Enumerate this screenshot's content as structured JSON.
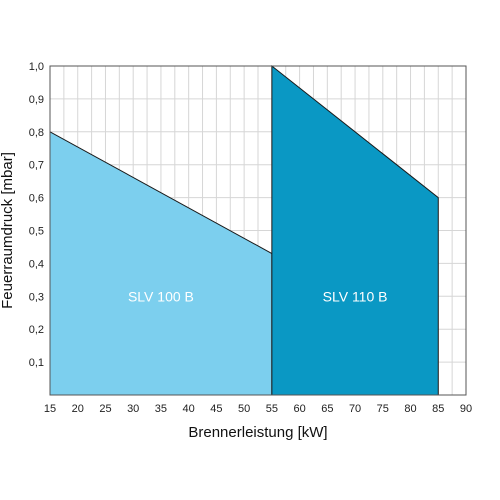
{
  "chart_data": {
    "type": "area",
    "xlabel": "Brennerleistung [kW]",
    "ylabel": "Feuerraumdruck [mbar]",
    "xlim": [
      15,
      90
    ],
    "ylim": [
      0,
      1.0
    ],
    "x_ticks": [
      "15",
      "20",
      "25",
      "30",
      "35",
      "40",
      "45",
      "50",
      "55",
      "60",
      "65",
      "70",
      "75",
      "80",
      "85",
      "90"
    ],
    "y_ticks": [
      "0,1",
      "0,2",
      "0,3",
      "0,4",
      "0,5",
      "0,6",
      "0,7",
      "0,8",
      "0,9",
      "1,0"
    ],
    "grid": true,
    "series": [
      {
        "name": "SLV 100 B",
        "color": "#7ccfee",
        "x": [
          15,
          55
        ],
        "y": [
          0.8,
          0.43
        ]
      },
      {
        "name": "SLV 110 B",
        "color": "#0a98c4",
        "x": [
          55,
          85
        ],
        "y": [
          1.0,
          0.6
        ]
      }
    ]
  }
}
